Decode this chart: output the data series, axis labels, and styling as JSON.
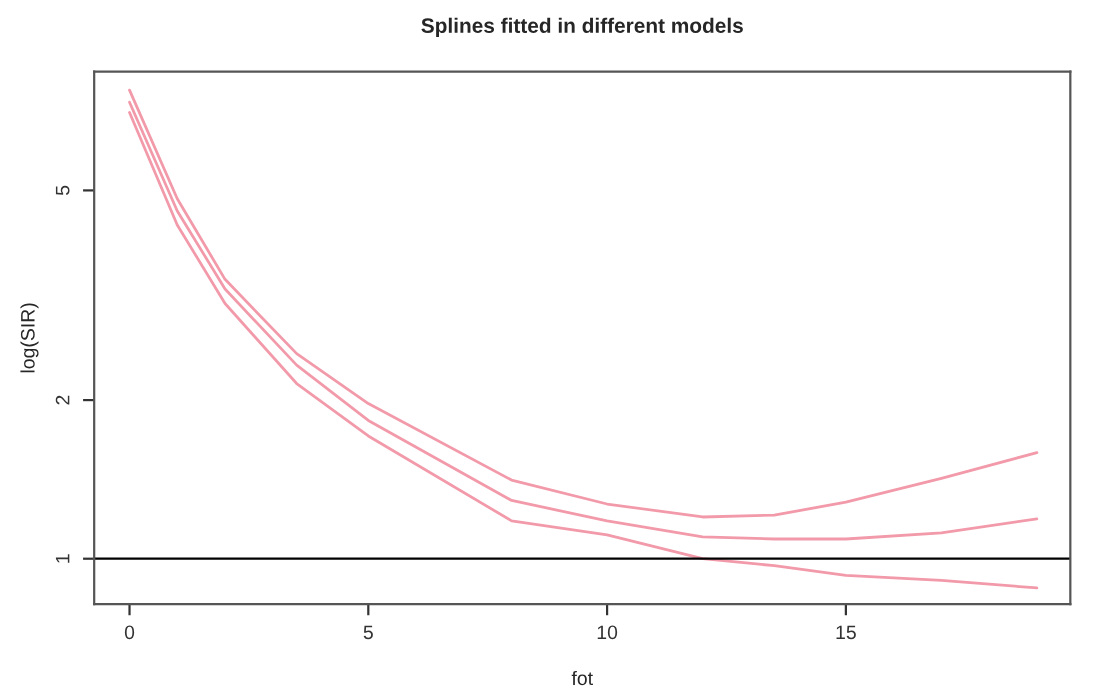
{
  "chart_data": {
    "type": "line",
    "title": "Splines fitted in different models",
    "xlabel": "fot",
    "ylabel": "log(SIR)",
    "log": true,
    "x": [
      0,
      1,
      2,
      3.5,
      5,
      8,
      10,
      12,
      13.5,
      15,
      17,
      19
    ],
    "series": [
      {
        "color": "#f29aaa",
        "values": [
          7.75,
          4.82,
          3.39,
          2.45,
          1.97,
          1.41,
          1.27,
          1.2,
          1.21,
          1.28,
          1.42,
          1.59
        ]
      },
      {
        "color": "#f29aaa",
        "values": [
          7.35,
          4.57,
          3.25,
          2.33,
          1.83,
          1.29,
          1.18,
          1.1,
          1.09,
          1.09,
          1.12,
          1.19
        ]
      },
      {
        "color": "#f29aaa",
        "values": [
          7.03,
          4.3,
          3.05,
          2.15,
          1.71,
          1.18,
          1.11,
          1.0,
          0.97,
          0.93,
          0.91,
          0.88
        ]
      }
    ],
    "xlim": [
      -0.74,
      19.7
    ],
    "ylim": [
      0.82,
      8.4
    ],
    "xticks": [
      0,
      5,
      10,
      15
    ],
    "yticks": [
      1,
      2,
      5
    ],
    "ref_lines": [
      {
        "axis": "y",
        "value": 1,
        "color": "#000000"
      }
    ],
    "grid": false,
    "legend": false,
    "marker": "none",
    "line_style": "solid"
  }
}
